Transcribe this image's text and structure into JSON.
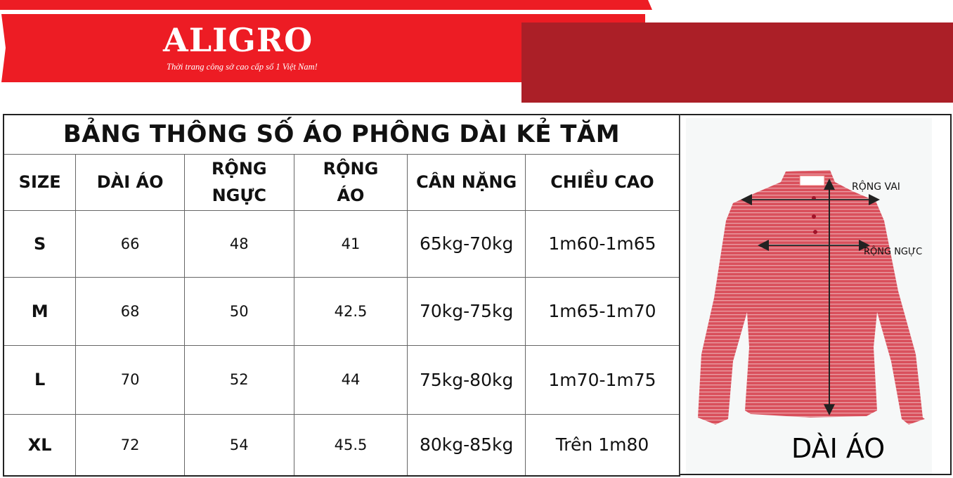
{
  "brand": {
    "logo": "ALIGRO",
    "slogan": "Thời trang công sở cao cấp số 1 Việt Nam!"
  },
  "colors": {
    "red": "#ed1c24",
    "dark_red": "#ab1f27",
    "shirt": "#d9505c"
  },
  "table": {
    "title": "BẢNG THÔNG SỐ ÁO PHÔNG DÀI KẺ TĂM",
    "headers": [
      "SIZE",
      "DÀI ÁO",
      "RỘNG\nNGỰC",
      "RỘNG\nÁO",
      "CÂN NẶNG",
      "CHIỀU CAO"
    ],
    "rows": [
      [
        "S",
        "66",
        "48",
        "41",
        "65kg-70kg",
        "1m60-1m65"
      ],
      [
        "M",
        "68",
        "50",
        "42.5",
        "70kg-75kg",
        "1m65-1m70"
      ],
      [
        "L",
        "70",
        "52",
        "44",
        "75kg-80kg",
        "1m70-1m75"
      ],
      [
        "XL",
        "72",
        "54",
        "45.5",
        "80kg-85kg",
        "Trên 1m80"
      ]
    ]
  },
  "diagram": {
    "shoulder_label": "RỘNG VAI",
    "chest_label": "RỘNG NGỰC",
    "length_label": "DÀI ÁO"
  }
}
